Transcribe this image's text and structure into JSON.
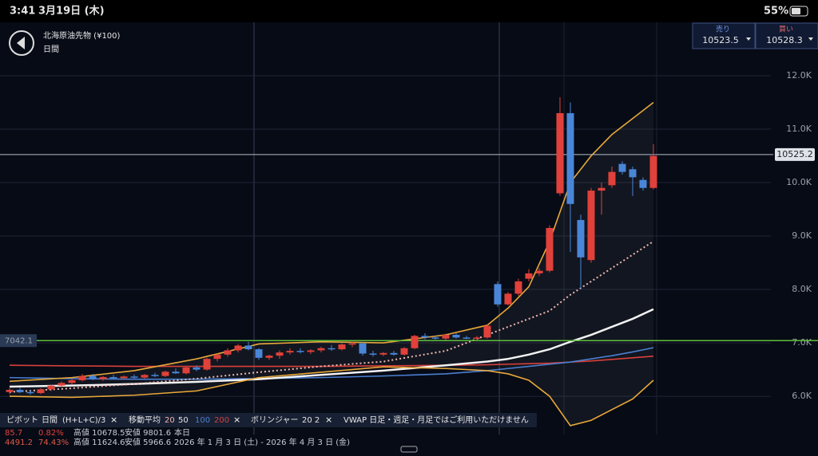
{
  "status_bar": {
    "time": "3:41",
    "date": "3月19日 (木)",
    "battery": "55%"
  },
  "header": {
    "title": "北海原油先物 (¥100)",
    "subtitle": "日間"
  },
  "quotes": [
    {
      "label": "売り",
      "value": "10523.5"
    },
    {
      "label": "買い",
      "value": "10528.3"
    }
  ],
  "chart_data": {
    "type": "candlestick",
    "up_color": "#e0413a",
    "down_color": "#4a86d8",
    "ylim": [
      5285,
      13000
    ],
    "yticks": [
      {
        "value": 6000,
        "label": "6.0K"
      },
      {
        "value": 7000,
        "label": "7.0K"
      },
      {
        "value": 8000,
        "label": "8.0K"
      },
      {
        "value": 9000,
        "label": "9.0K"
      },
      {
        "value": 10000,
        "label": "10.0K"
      },
      {
        "value": 11000,
        "label": "11.0K"
      },
      {
        "value": 12000,
        "label": "12.0K"
      }
    ],
    "grid": true,
    "last_price": 10525.2,
    "pivot_line": {
      "value": 7042.1,
      "color": "#5fbf3a"
    },
    "candles": [
      {
        "open": 6080,
        "high": 6150,
        "low": 6040,
        "close": 6120
      },
      {
        "open": 6120,
        "high": 6160,
        "low": 6060,
        "close": 6080
      },
      {
        "open": 6080,
        "high": 6120,
        "low": 6030,
        "close": 6060
      },
      {
        "open": 6060,
        "high": 6150,
        "low": 6040,
        "close": 6130
      },
      {
        "open": 6130,
        "high": 6220,
        "low": 6100,
        "close": 6200
      },
      {
        "open": 6200,
        "high": 6280,
        "low": 6170,
        "close": 6250
      },
      {
        "open": 6250,
        "high": 6330,
        "low": 6220,
        "close": 6300
      },
      {
        "open": 6300,
        "high": 6420,
        "low": 6280,
        "close": 6380
      },
      {
        "open": 6380,
        "high": 6420,
        "low": 6300,
        "close": 6320
      },
      {
        "open": 6320,
        "high": 6380,
        "low": 6290,
        "close": 6360
      },
      {
        "open": 6360,
        "high": 6400,
        "low": 6320,
        "close": 6340
      },
      {
        "open": 6340,
        "high": 6390,
        "low": 6310,
        "close": 6370
      },
      {
        "open": 6370,
        "high": 6410,
        "low": 6330,
        "close": 6350
      },
      {
        "open": 6350,
        "high": 6420,
        "low": 6330,
        "close": 6400
      },
      {
        "open": 6400,
        "high": 6440,
        "low": 6360,
        "close": 6380
      },
      {
        "open": 6380,
        "high": 6480,
        "low": 6360,
        "close": 6460
      },
      {
        "open": 6460,
        "high": 6520,
        "low": 6420,
        "close": 6430
      },
      {
        "open": 6430,
        "high": 6560,
        "low": 6410,
        "close": 6540
      },
      {
        "open": 6540,
        "high": 6580,
        "low": 6470,
        "close": 6500
      },
      {
        "open": 6500,
        "high": 6720,
        "low": 6480,
        "close": 6700
      },
      {
        "open": 6700,
        "high": 6800,
        "low": 6650,
        "close": 6780
      },
      {
        "open": 6780,
        "high": 6900,
        "low": 6740,
        "close": 6860
      },
      {
        "open": 6860,
        "high": 6980,
        "low": 6820,
        "close": 6950
      },
      {
        "open": 6950,
        "high": 7020,
        "low": 6860,
        "close": 6880
      },
      {
        "open": 6880,
        "high": 6900,
        "low": 6680,
        "close": 6720
      },
      {
        "open": 6720,
        "high": 6780,
        "low": 6680,
        "close": 6760
      },
      {
        "open": 6760,
        "high": 6860,
        "low": 6700,
        "close": 6820
      },
      {
        "open": 6820,
        "high": 6900,
        "low": 6780,
        "close": 6850
      },
      {
        "open": 6850,
        "high": 6900,
        "low": 6800,
        "close": 6830
      },
      {
        "open": 6830,
        "high": 6880,
        "low": 6790,
        "close": 6860
      },
      {
        "open": 6860,
        "high": 6930,
        "low": 6820,
        "close": 6900
      },
      {
        "open": 6900,
        "high": 6960,
        "low": 6850,
        "close": 6880
      },
      {
        "open": 6880,
        "high": 6990,
        "low": 6860,
        "close": 6970
      },
      {
        "open": 6970,
        "high": 7020,
        "low": 6920,
        "close": 6990
      },
      {
        "open": 6990,
        "high": 7010,
        "low": 6760,
        "close": 6800
      },
      {
        "open": 6800,
        "high": 6850,
        "low": 6740,
        "close": 6780
      },
      {
        "open": 6780,
        "high": 6830,
        "low": 6750,
        "close": 6810
      },
      {
        "open": 6810,
        "high": 6850,
        "low": 6760,
        "close": 6780
      },
      {
        "open": 6780,
        "high": 6920,
        "low": 6760,
        "close": 6900
      },
      {
        "open": 6900,
        "high": 7150,
        "low": 6880,
        "close": 7130
      },
      {
        "open": 7130,
        "high": 7180,
        "low": 7060,
        "close": 7100
      },
      {
        "open": 7100,
        "high": 7140,
        "low": 7060,
        "close": 7080
      },
      {
        "open": 7080,
        "high": 7170,
        "low": 7050,
        "close": 7150
      },
      {
        "open": 7150,
        "high": 7180,
        "low": 7080,
        "close": 7100
      },
      {
        "open": 7100,
        "high": 7130,
        "low": 7070,
        "close": 7090
      },
      {
        "open": 7090,
        "high": 7130,
        "low": 7060,
        "close": 7100
      },
      {
        "open": 7100,
        "high": 7350,
        "low": 7080,
        "close": 7320
      },
      {
        "open": 8100,
        "high": 8150,
        "low": 7680,
        "close": 7720
      },
      {
        "open": 7720,
        "high": 7950,
        "low": 7700,
        "close": 7920
      },
      {
        "open": 7920,
        "high": 8200,
        "low": 7880,
        "close": 8150
      },
      {
        "open": 8200,
        "high": 8380,
        "low": 8150,
        "close": 8300
      },
      {
        "open": 8300,
        "high": 8400,
        "low": 8250,
        "close": 8350
      },
      {
        "open": 8350,
        "high": 9200,
        "low": 8320,
        "close": 9150
      },
      {
        "open": 9800,
        "high": 11600,
        "low": 9750,
        "close": 11300
      },
      {
        "open": 11300,
        "high": 11500,
        "low": 8700,
        "close": 9600
      },
      {
        "open": 9300,
        "high": 9400,
        "low": 8000,
        "close": 8600
      },
      {
        "open": 8550,
        "high": 9900,
        "low": 8500,
        "close": 9850
      },
      {
        "open": 9850,
        "high": 10000,
        "low": 9400,
        "close": 9900
      },
      {
        "open": 9950,
        "high": 10300,
        "low": 9900,
        "close": 10200
      },
      {
        "open": 10350,
        "high": 10400,
        "low": 10150,
        "close": 10200
      },
      {
        "open": 10250,
        "high": 10300,
        "low": 9750,
        "close": 10100
      },
      {
        "open": 10050,
        "high": 10100,
        "low": 9850,
        "close": 9900
      },
      {
        "open": 9900,
        "high": 10720,
        "low": 9870,
        "close": 10500
      }
    ],
    "moving_average": {
      "label": "移動平均",
      "x": [
        0,
        6,
        12,
        18,
        24,
        30,
        36,
        42,
        46,
        48,
        50,
        52,
        54,
        56,
        58,
        60,
        62
      ],
      "series": [
        {
          "name": "20",
          "color": "#f0b8b0",
          "dashed": true,
          "values": [
            6080,
            6150,
            6230,
            6330,
            6450,
            6560,
            6650,
            6850,
            7150,
            7300,
            7450,
            7600,
            7900,
            8150,
            8400,
            8650,
            8900
          ]
        },
        {
          "name": "50",
          "color": "#f2f2f2",
          "values": [
            6180,
            6200,
            6230,
            6270,
            6320,
            6400,
            6480,
            6580,
            6650,
            6700,
            6780,
            6880,
            7020,
            7150,
            7300,
            7450,
            7630
          ]
        },
        {
          "name": "100",
          "color": "#4a7fd0",
          "values": [
            6350,
            6330,
            6320,
            6320,
            6330,
            6350,
            6380,
            6420,
            6480,
            6520,
            6560,
            6600,
            6640,
            6700,
            6760,
            6830,
            6910
          ]
        },
        {
          "name": "200",
          "color": "#d8403a",
          "values": [
            6580,
            6570,
            6560,
            6560,
            6560,
            6560,
            6570,
            6580,
            6590,
            6600,
            6610,
            6620,
            6640,
            6660,
            6690,
            6720,
            6750
          ]
        }
      ]
    },
    "bollinger": {
      "label": "ボリンジャー",
      "params": "20  2",
      "color": "#e8a83a",
      "x": [
        0,
        6,
        12,
        18,
        24,
        30,
        36,
        42,
        46,
        48,
        50,
        52,
        54,
        56,
        58,
        60,
        62
      ],
      "upper": [
        6280,
        6350,
        6480,
        6700,
        6980,
        7020,
        7000,
        7150,
        7330,
        7650,
        8050,
        8900,
        10000,
        10500,
        10900,
        11200,
        11500
      ],
      "lower": [
        6000,
        5980,
        6020,
        6100,
        6350,
        6450,
        6550,
        6520,
        6480,
        6420,
        6300,
        6000,
        5450,
        5550,
        5750,
        5950,
        6300
      ]
    }
  },
  "legend": {
    "pivot": {
      "label": "ピボット",
      "period": "日間",
      "formula": "(H+L+C)/3"
    },
    "vwap": "VWAP  日足・週足・月足ではご利用いただけません",
    "rows": [
      [
        "85.7",
        "0.82%",
        "高値 10678.5",
        "安値 9801.6",
        "本日"
      ],
      [
        "4491.2",
        "74.43%",
        "高値 11624.6",
        "安値 5966.6",
        "2026 年 1 月 3 日 (土) - 2026 年 4 月 3 日 (金)"
      ]
    ]
  }
}
